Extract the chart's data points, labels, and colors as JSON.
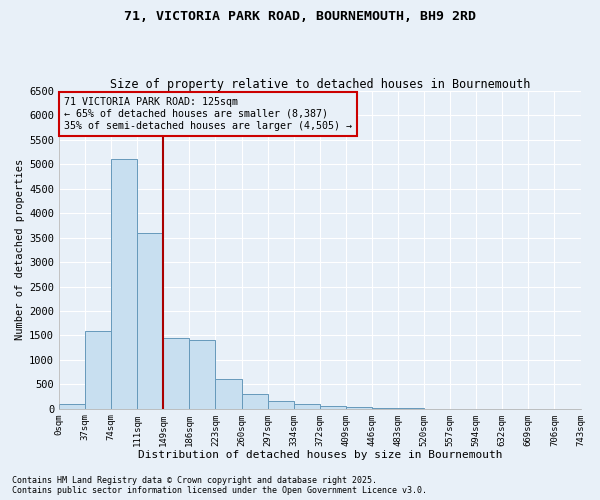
{
  "title_line1": "71, VICTORIA PARK ROAD, BOURNEMOUTH, BH9 2RD",
  "title_line2": "Size of property relative to detached houses in Bournemouth",
  "xlabel": "Distribution of detached houses by size in Bournemouth",
  "ylabel": "Number of detached properties",
  "bar_values": [
    100,
    1600,
    5100,
    3600,
    1450,
    1400,
    600,
    300,
    150,
    100,
    50,
    30,
    15,
    5,
    3,
    2,
    1,
    1,
    0,
    0
  ],
  "bin_labels": [
    "0sqm",
    "37sqm",
    "74sqm",
    "111sqm",
    "149sqm",
    "186sqm",
    "223sqm",
    "260sqm",
    "297sqm",
    "334sqm",
    "372sqm",
    "409sqm",
    "446sqm",
    "483sqm",
    "520sqm",
    "557sqm",
    "594sqm",
    "632sqm",
    "669sqm",
    "706sqm",
    "743sqm"
  ],
  "bar_color": "#c8dff0",
  "bar_edgecolor": "#6699bb",
  "bg_color": "#e8f0f8",
  "grid_color": "#ffffff",
  "vline_x": 3.5,
  "vline_color": "#aa0000",
  "annotation_text": "71 VICTORIA PARK ROAD: 125sqm\n← 65% of detached houses are smaller (8,387)\n35% of semi-detached houses are larger (4,505) →",
  "annotation_box_color": "#cc0000",
  "ylim": [
    0,
    6500
  ],
  "yticks": [
    0,
    500,
    1000,
    1500,
    2000,
    2500,
    3000,
    3500,
    4000,
    4500,
    5000,
    5500,
    6000,
    6500
  ],
  "footnote1": "Contains HM Land Registry data © Crown copyright and database right 2025.",
  "footnote2": "Contains public sector information licensed under the Open Government Licence v3.0."
}
